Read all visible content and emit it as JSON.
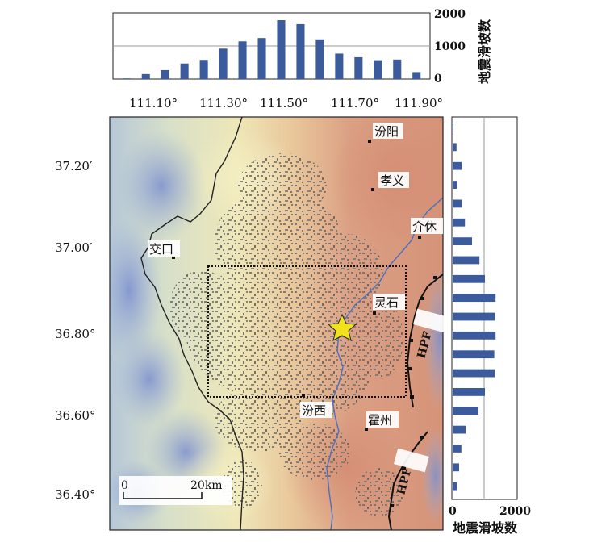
{
  "top_histogram": {
    "ylabel": "地震滑坡数",
    "yticks": [
      "0",
      "1000",
      "2000"
    ],
    "ylim": [
      0,
      2000
    ],
    "bar_color": "#3b5b9d",
    "values": [
      20,
      150,
      270,
      470,
      580,
      920,
      1140,
      1240,
      1780,
      1660,
      1200,
      770,
      660,
      570,
      590,
      210
    ]
  },
  "right_histogram": {
    "xlabel": "地震滑坡数",
    "xticks": [
      "0",
      "2000"
    ],
    "xlim": [
      0,
      2000
    ],
    "bar_color": "#3b5b9d",
    "values": [
      20,
      120,
      280,
      130,
      290,
      380,
      600,
      830,
      1000,
      1330,
      1310,
      1330,
      1290,
      1300,
      1000,
      800,
      400,
      270,
      200,
      130
    ]
  },
  "map": {
    "lon_labels": [
      "111.10°",
      "111.30°",
      "111.50°",
      "111.70°",
      "111.90°"
    ],
    "lat_labels": [
      "37.20′",
      "37.00′",
      "36.80°",
      "36.60°",
      "36.40°"
    ],
    "cities": [
      {
        "name": "汾阳"
      },
      {
        "name": "孝义"
      },
      {
        "name": "介休"
      },
      {
        "name": "交口"
      },
      {
        "name": "灵石"
      },
      {
        "name": "汾西"
      },
      {
        "name": "霍州"
      }
    ],
    "fault_label": "HPF",
    "scale": {
      "zero": "0",
      "end": "20km"
    },
    "epicenter_color": "#f2e21e"
  }
}
